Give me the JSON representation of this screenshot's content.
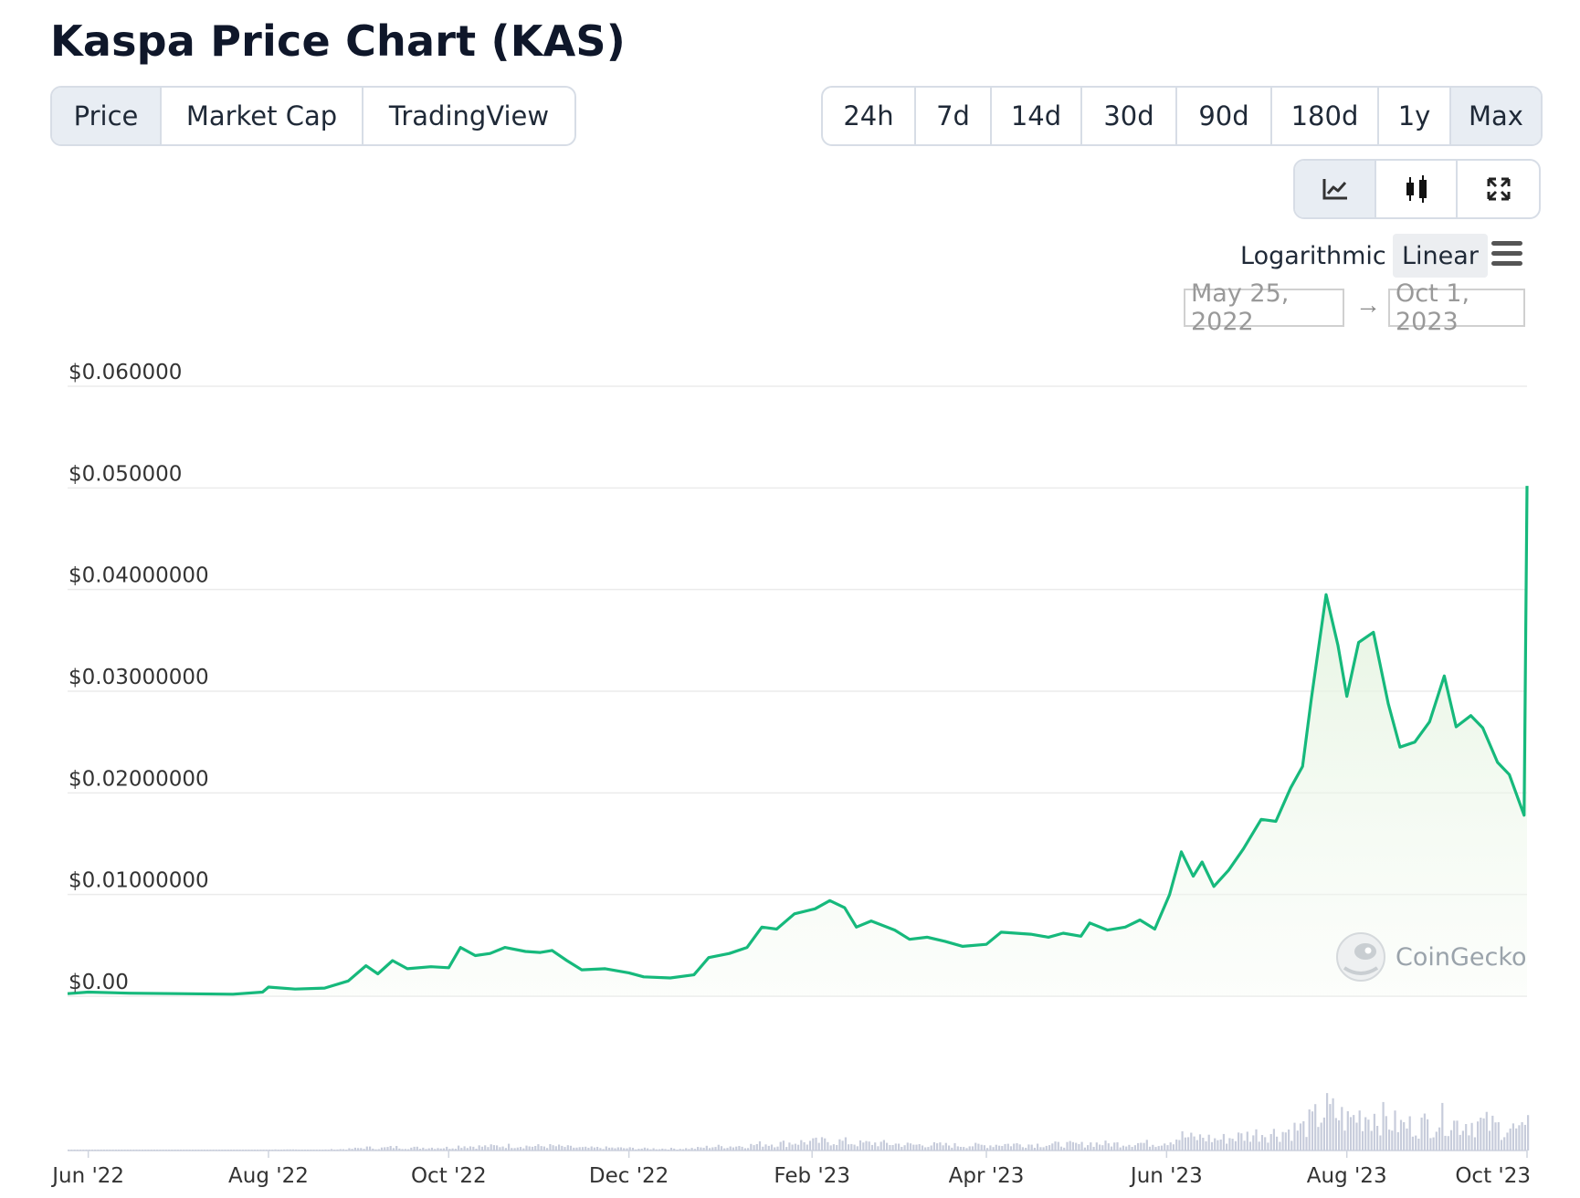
{
  "title": "Kaspa Price Chart (KAS)",
  "tabs": [
    {
      "label": "Price",
      "active": true
    },
    {
      "label": "Market Cap",
      "active": false
    },
    {
      "label": "TradingView",
      "active": false
    }
  ],
  "ranges": [
    {
      "label": "24h",
      "active": false
    },
    {
      "label": "7d",
      "active": false
    },
    {
      "label": "14d",
      "active": false
    },
    {
      "label": "30d",
      "active": false
    },
    {
      "label": "90d",
      "active": false
    },
    {
      "label": "180d",
      "active": false
    },
    {
      "label": "1y",
      "active": false
    },
    {
      "label": "Max",
      "active": true
    }
  ],
  "chart_types": [
    {
      "icon": "line-chart-icon",
      "active": true
    },
    {
      "icon": "candlestick-icon",
      "active": false
    },
    {
      "icon": "expand-icon",
      "active": false
    }
  ],
  "scale": {
    "logarithmic": "Logarithmic",
    "linear": "Linear",
    "selected": "Linear"
  },
  "date_range": {
    "from": "May 25, 2022",
    "arrow": "→",
    "to": "Oct 1, 2023"
  },
  "watermark": "CoinGecko",
  "colors": {
    "line": "#16b97c",
    "fill_top": "#dff2da",
    "volume": "#c7ccdb",
    "grid": "#ebebeb"
  },
  "chart_data": {
    "type": "area",
    "title": "",
    "xlabel": "",
    "ylabel": "",
    "x_range": [
      "2022-05-25",
      "2023-10-01"
    ],
    "ylim": [
      0,
      0.06
    ],
    "grid": true,
    "yticks": [
      {
        "value": 0,
        "label": "$0.00"
      },
      {
        "value": 0.01,
        "label": "$0.01000000"
      },
      {
        "value": 0.02,
        "label": "$0.02000000"
      },
      {
        "value": 0.03,
        "label": "$0.03000000"
      },
      {
        "value": 0.04,
        "label": "$0.04000000"
      },
      {
        "value": 0.05,
        "label": "$0.050000"
      },
      {
        "value": 0.06,
        "label": "$0.060000"
      }
    ],
    "xticks": [
      {
        "date": "2022-06-01",
        "label": "Jun '22"
      },
      {
        "date": "2022-08-01",
        "label": "Aug '22"
      },
      {
        "date": "2022-10-01",
        "label": "Oct '22"
      },
      {
        "date": "2022-12-01",
        "label": "Dec '22"
      },
      {
        "date": "2023-02-01",
        "label": "Feb '23"
      },
      {
        "date": "2023-04-01",
        "label": "Apr '23"
      },
      {
        "date": "2023-06-01",
        "label": "Jun '23"
      },
      {
        "date": "2023-08-01",
        "label": "Aug '23"
      },
      {
        "date": "2023-10-01",
        "label": "Oct '23"
      }
    ],
    "series": [
      {
        "points": [
          [
            "2022-05-25",
            0.00025
          ],
          [
            "2022-06-01",
            0.0004
          ],
          [
            "2022-06-15",
            0.0003
          ],
          [
            "2022-07-01",
            0.00025
          ],
          [
            "2022-07-20",
            0.0002
          ],
          [
            "2022-07-30",
            0.0004
          ],
          [
            "2022-08-01",
            0.0009
          ],
          [
            "2022-08-10",
            0.0007
          ],
          [
            "2022-08-20",
            0.0008
          ],
          [
            "2022-08-28",
            0.0015
          ],
          [
            "2022-09-03",
            0.003
          ],
          [
            "2022-09-07",
            0.0022
          ],
          [
            "2022-09-12",
            0.0035
          ],
          [
            "2022-09-17",
            0.0027
          ],
          [
            "2022-09-25",
            0.0029
          ],
          [
            "2022-10-01",
            0.0028
          ],
          [
            "2022-10-05",
            0.0048
          ],
          [
            "2022-10-10",
            0.004
          ],
          [
            "2022-10-15",
            0.0042
          ],
          [
            "2022-10-20",
            0.0048
          ],
          [
            "2022-10-27",
            0.0044
          ],
          [
            "2022-11-01",
            0.0043
          ],
          [
            "2022-11-05",
            0.0045
          ],
          [
            "2022-11-10",
            0.0035
          ],
          [
            "2022-11-15",
            0.0026
          ],
          [
            "2022-11-23",
            0.0027
          ],
          [
            "2022-12-01",
            0.0023
          ],
          [
            "2022-12-06",
            0.0019
          ],
          [
            "2022-12-15",
            0.0018
          ],
          [
            "2022-12-23",
            0.0021
          ],
          [
            "2022-12-28",
            0.0038
          ],
          [
            "2023-01-04",
            0.0042
          ],
          [
            "2023-01-10",
            0.0048
          ],
          [
            "2023-01-15",
            0.0068
          ],
          [
            "2023-01-20",
            0.0066
          ],
          [
            "2023-01-26",
            0.0081
          ],
          [
            "2023-02-02",
            0.0086
          ],
          [
            "2023-02-07",
            0.0094
          ],
          [
            "2023-02-12",
            0.0087
          ],
          [
            "2023-02-16",
            0.0068
          ],
          [
            "2023-02-21",
            0.0074
          ],
          [
            "2023-03-01",
            0.0065
          ],
          [
            "2023-03-06",
            0.0056
          ],
          [
            "2023-03-12",
            0.0058
          ],
          [
            "2023-03-18",
            0.0054
          ],
          [
            "2023-03-24",
            0.0049
          ],
          [
            "2023-04-01",
            0.0051
          ],
          [
            "2023-04-06",
            0.0063
          ],
          [
            "2023-04-11",
            0.0062
          ],
          [
            "2023-04-16",
            0.0061
          ],
          [
            "2023-04-22",
            0.0058
          ],
          [
            "2023-04-27",
            0.0062
          ],
          [
            "2023-05-03",
            0.0059
          ],
          [
            "2023-05-06",
            0.0072
          ],
          [
            "2023-05-12",
            0.0065
          ],
          [
            "2023-05-18",
            0.0068
          ],
          [
            "2023-05-23",
            0.0075
          ],
          [
            "2023-05-28",
            0.0066
          ],
          [
            "2023-06-02",
            0.01
          ],
          [
            "2023-06-06",
            0.0142
          ],
          [
            "2023-06-10",
            0.0118
          ],
          [
            "2023-06-13",
            0.0132
          ],
          [
            "2023-06-17",
            0.0108
          ],
          [
            "2023-06-22",
            0.0124
          ],
          [
            "2023-06-27",
            0.0145
          ],
          [
            "2023-07-03",
            0.0174
          ],
          [
            "2023-07-08",
            0.0172
          ],
          [
            "2023-07-13",
            0.0205
          ],
          [
            "2023-07-17",
            0.0226
          ],
          [
            "2023-07-20",
            0.0293
          ],
          [
            "2023-07-25",
            0.0395
          ],
          [
            "2023-07-29",
            0.0345
          ],
          [
            "2023-08-01",
            0.0295
          ],
          [
            "2023-08-05",
            0.0348
          ],
          [
            "2023-08-10",
            0.0358
          ],
          [
            "2023-08-15",
            0.0288
          ],
          [
            "2023-08-19",
            0.0245
          ],
          [
            "2023-08-24",
            0.025
          ],
          [
            "2023-08-29",
            0.027
          ],
          [
            "2023-09-03",
            0.0315
          ],
          [
            "2023-09-07",
            0.0265
          ],
          [
            "2023-09-12",
            0.0276
          ],
          [
            "2023-09-16",
            0.0264
          ],
          [
            "2023-09-21",
            0.023
          ],
          [
            "2023-09-25",
            0.0218
          ],
          [
            "2023-09-30",
            0.0178
          ],
          [
            "2023-10-01",
            0.0502
          ]
        ]
      }
    ]
  }
}
